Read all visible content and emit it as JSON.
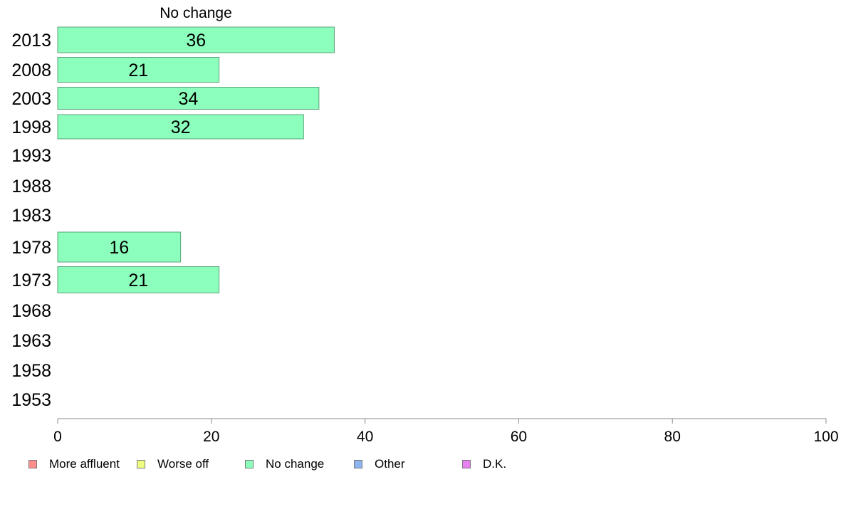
{
  "chart_data": {
    "type": "bar",
    "orientation": "horizontal",
    "title": "No change",
    "categories": [
      "2013",
      "2008",
      "2003",
      "1998",
      "1993",
      "1988",
      "1983",
      "1978",
      "1973",
      "1968",
      "1963",
      "1958",
      "1953"
    ],
    "series": [
      {
        "name": "No change",
        "color": "#8cffbc",
        "values": [
          36,
          21,
          34,
          32,
          null,
          null,
          null,
          16,
          21,
          null,
          null,
          null,
          null
        ]
      }
    ],
    "xlim": [
      0,
      100
    ],
    "xticks": [
      "0",
      "20",
      "40",
      "60",
      "80",
      "100"
    ],
    "xlabel": "",
    "ylabel": "",
    "grid": false,
    "legend_position": "bottom",
    "legend": [
      {
        "label": "More affluent",
        "color": "#ff8c8c"
      },
      {
        "label": "Worse off",
        "color": "#eeff80"
      },
      {
        "label": "No change",
        "color": "#8cffbc"
      },
      {
        "label": "Other",
        "color": "#8cb4f0"
      },
      {
        "label": "D.K.",
        "color": "#e67ff2"
      }
    ]
  }
}
